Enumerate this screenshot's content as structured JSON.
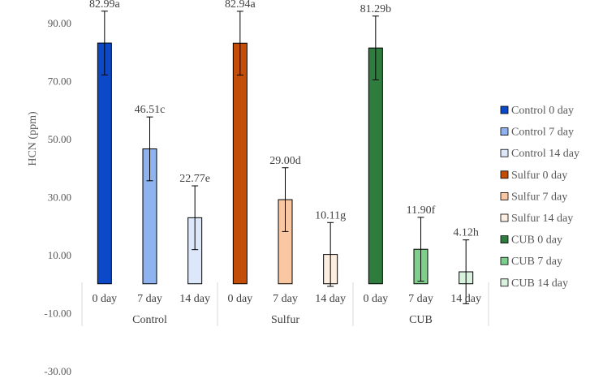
{
  "chart_data": {
    "type": "bar",
    "ylabel": "HCN (ppm)",
    "ylim": [
      -30,
      90
    ],
    "yticks": [
      "90.00",
      "70.00",
      "50.00",
      "30.00",
      "10.00",
      "-10.00",
      "-30.00"
    ],
    "ytick_values": [
      90,
      70,
      50,
      30,
      10,
      -10,
      -30
    ],
    "groups": [
      {
        "name": "Control",
        "categories": [
          "0 day",
          "7 day",
          "14 day"
        ]
      },
      {
        "name": "Sulfur",
        "categories": [
          "0 day",
          "7 day",
          "14 day"
        ]
      },
      {
        "name": "CUB",
        "categories": [
          "0 day",
          "7 day",
          "14 day"
        ]
      }
    ],
    "series": [
      {
        "name": "Control 0 day",
        "value": 82.99,
        "error": 11,
        "label": "82.99a",
        "color": "#0b49c8",
        "stroke": "#000000"
      },
      {
        "name": "Control 7 day",
        "value": 46.51,
        "error": 11,
        "label": "46.51c",
        "color": "#8fb3ef",
        "stroke": "#000000"
      },
      {
        "name": "Control 14 day",
        "value": 22.77,
        "error": 11,
        "label": "22.77e",
        "color": "#dce8fa",
        "stroke": "#000000"
      },
      {
        "name": "Sulfur 0 day",
        "value": 82.94,
        "error": 11,
        "label": "82.94a",
        "color": "#c24e0a",
        "stroke": "#000000"
      },
      {
        "name": "Sulfur 7 day",
        "value": 29.0,
        "error": 11,
        "label": "29.00d",
        "color": "#f9c7a2",
        "stroke": "#000000"
      },
      {
        "name": "Sulfur 14 day",
        "value": 10.11,
        "error": 11,
        "label": "10.11g",
        "color": "#fdeee2",
        "stroke": "#000000"
      },
      {
        "name": "CUB 0 day",
        "value": 81.29,
        "error": 11,
        "label": "81.29b",
        "color": "#2f7d3e",
        "stroke": "#000000"
      },
      {
        "name": "CUB 7 day",
        "value": 11.9,
        "error": 11,
        "label": "11.90f",
        "color": "#7fcf8c",
        "stroke": "#000000"
      },
      {
        "name": "CUB 14 day",
        "value": 4.12,
        "error": 11,
        "label": "4.12h",
        "color": "#d9f2dd",
        "stroke": "#000000"
      }
    ],
    "legend": {
      "placement": "right"
    },
    "grid": false
  }
}
